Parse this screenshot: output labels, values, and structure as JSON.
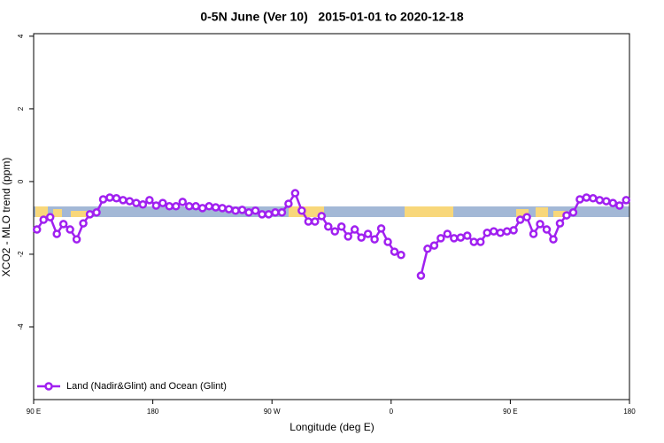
{
  "chart_data": {
    "type": "line",
    "title": "0-5N June (Ver 10)   2015-01-01 to 2020-12-18",
    "xlabel": "Longitude (deg E)",
    "ylabel": "XCO2 - MLO trend (ppm)",
    "x": [
      92.5,
      97.5,
      102.5,
      107.5,
      112.5,
      117.5,
      122.5,
      127.5,
      132.5,
      137.5,
      142.5,
      147.5,
      152.5,
      157.5,
      162.5,
      167.5,
      172.5,
      177.5,
      182.5,
      187.5,
      192.5,
      197.5,
      202.5,
      207.5,
      212.5,
      217.5,
      222.5,
      227.5,
      232.5,
      237.5,
      242.5,
      247.5,
      252.5,
      257.5,
      262.5,
      267.5,
      272.5,
      277.5,
      282.5,
      287.5,
      292.5,
      297.5,
      302.5,
      307.5,
      312.5,
      317.5,
      322.5,
      327.5,
      332.5,
      337.5,
      342.5,
      347.5,
      352.5,
      357.5,
      362.5,
      367.5,
      372.5,
      377.5,
      382.5,
      387.5,
      392.5,
      397.5,
      402.5,
      407.5,
      412.5,
      417.5,
      422.5,
      427.5,
      432.5,
      437.5,
      442.5,
      447.5,
      452.5,
      457.5,
      462.5,
      467.5,
      472.5,
      477.5,
      482.5,
      487.5,
      492.5,
      497.5,
      502.5,
      507.5,
      512.5,
      517.5,
      522.5,
      527.5,
      532.5,
      537.5
    ],
    "series": [
      {
        "name": "Land (Nadir&Glint) and Ocean (Glint)",
        "color": "#a020f0",
        "values": [
          -1.32,
          -1.05,
          -0.98,
          -1.44,
          -1.17,
          -1.32,
          -1.59,
          -1.15,
          -0.9,
          -0.85,
          -0.49,
          -0.44,
          -0.46,
          -0.51,
          -0.54,
          -0.59,
          -0.63,
          -0.51,
          -0.66,
          -0.59,
          -0.68,
          -0.68,
          -0.56,
          -0.68,
          -0.68,
          -0.73,
          -0.68,
          -0.71,
          -0.73,
          -0.76,
          -0.8,
          -0.78,
          -0.85,
          -0.8,
          -0.9,
          -0.9,
          -0.85,
          -0.85,
          -0.61,
          -0.32,
          -0.8,
          -1.1,
          -1.1,
          -0.95,
          -1.24,
          -1.37,
          -1.24,
          -1.51,
          -1.32,
          -1.54,
          -1.44,
          -1.59,
          -1.29,
          -1.66,
          -1.93,
          -2.02,
          null,
          null,
          -2.59,
          -1.85,
          -1.76,
          -1.56,
          -1.44,
          -1.56,
          -1.54,
          -1.49,
          -1.66,
          -1.66,
          -1.41,
          -1.37,
          -1.41,
          -1.37,
          -1.34,
          -1.05,
          -0.98,
          -1.44,
          -1.17,
          -1.32,
          -1.59,
          -1.15,
          -0.93,
          -0.85,
          -0.49,
          -0.44,
          -0.46,
          -0.51,
          -0.54,
          -0.59,
          -0.66,
          -0.51
        ]
      }
    ],
    "xlim": [
      90,
      540
    ],
    "xticks": [
      {
        "value": 90,
        "label": "90 E"
      },
      180,
      {
        "value": 270,
        "label": "90 W"
      },
      {
        "value": 360,
        "label": "0"
      },
      {
        "value": 450,
        "label": "90 E"
      },
      {
        "value": 540,
        "label": "180"
      }
    ],
    "ylim": [
      -6,
      4.07
    ],
    "yticks": [
      -4,
      -2,
      0,
      2,
      4
    ],
    "legend": "bottom-left"
  }
}
